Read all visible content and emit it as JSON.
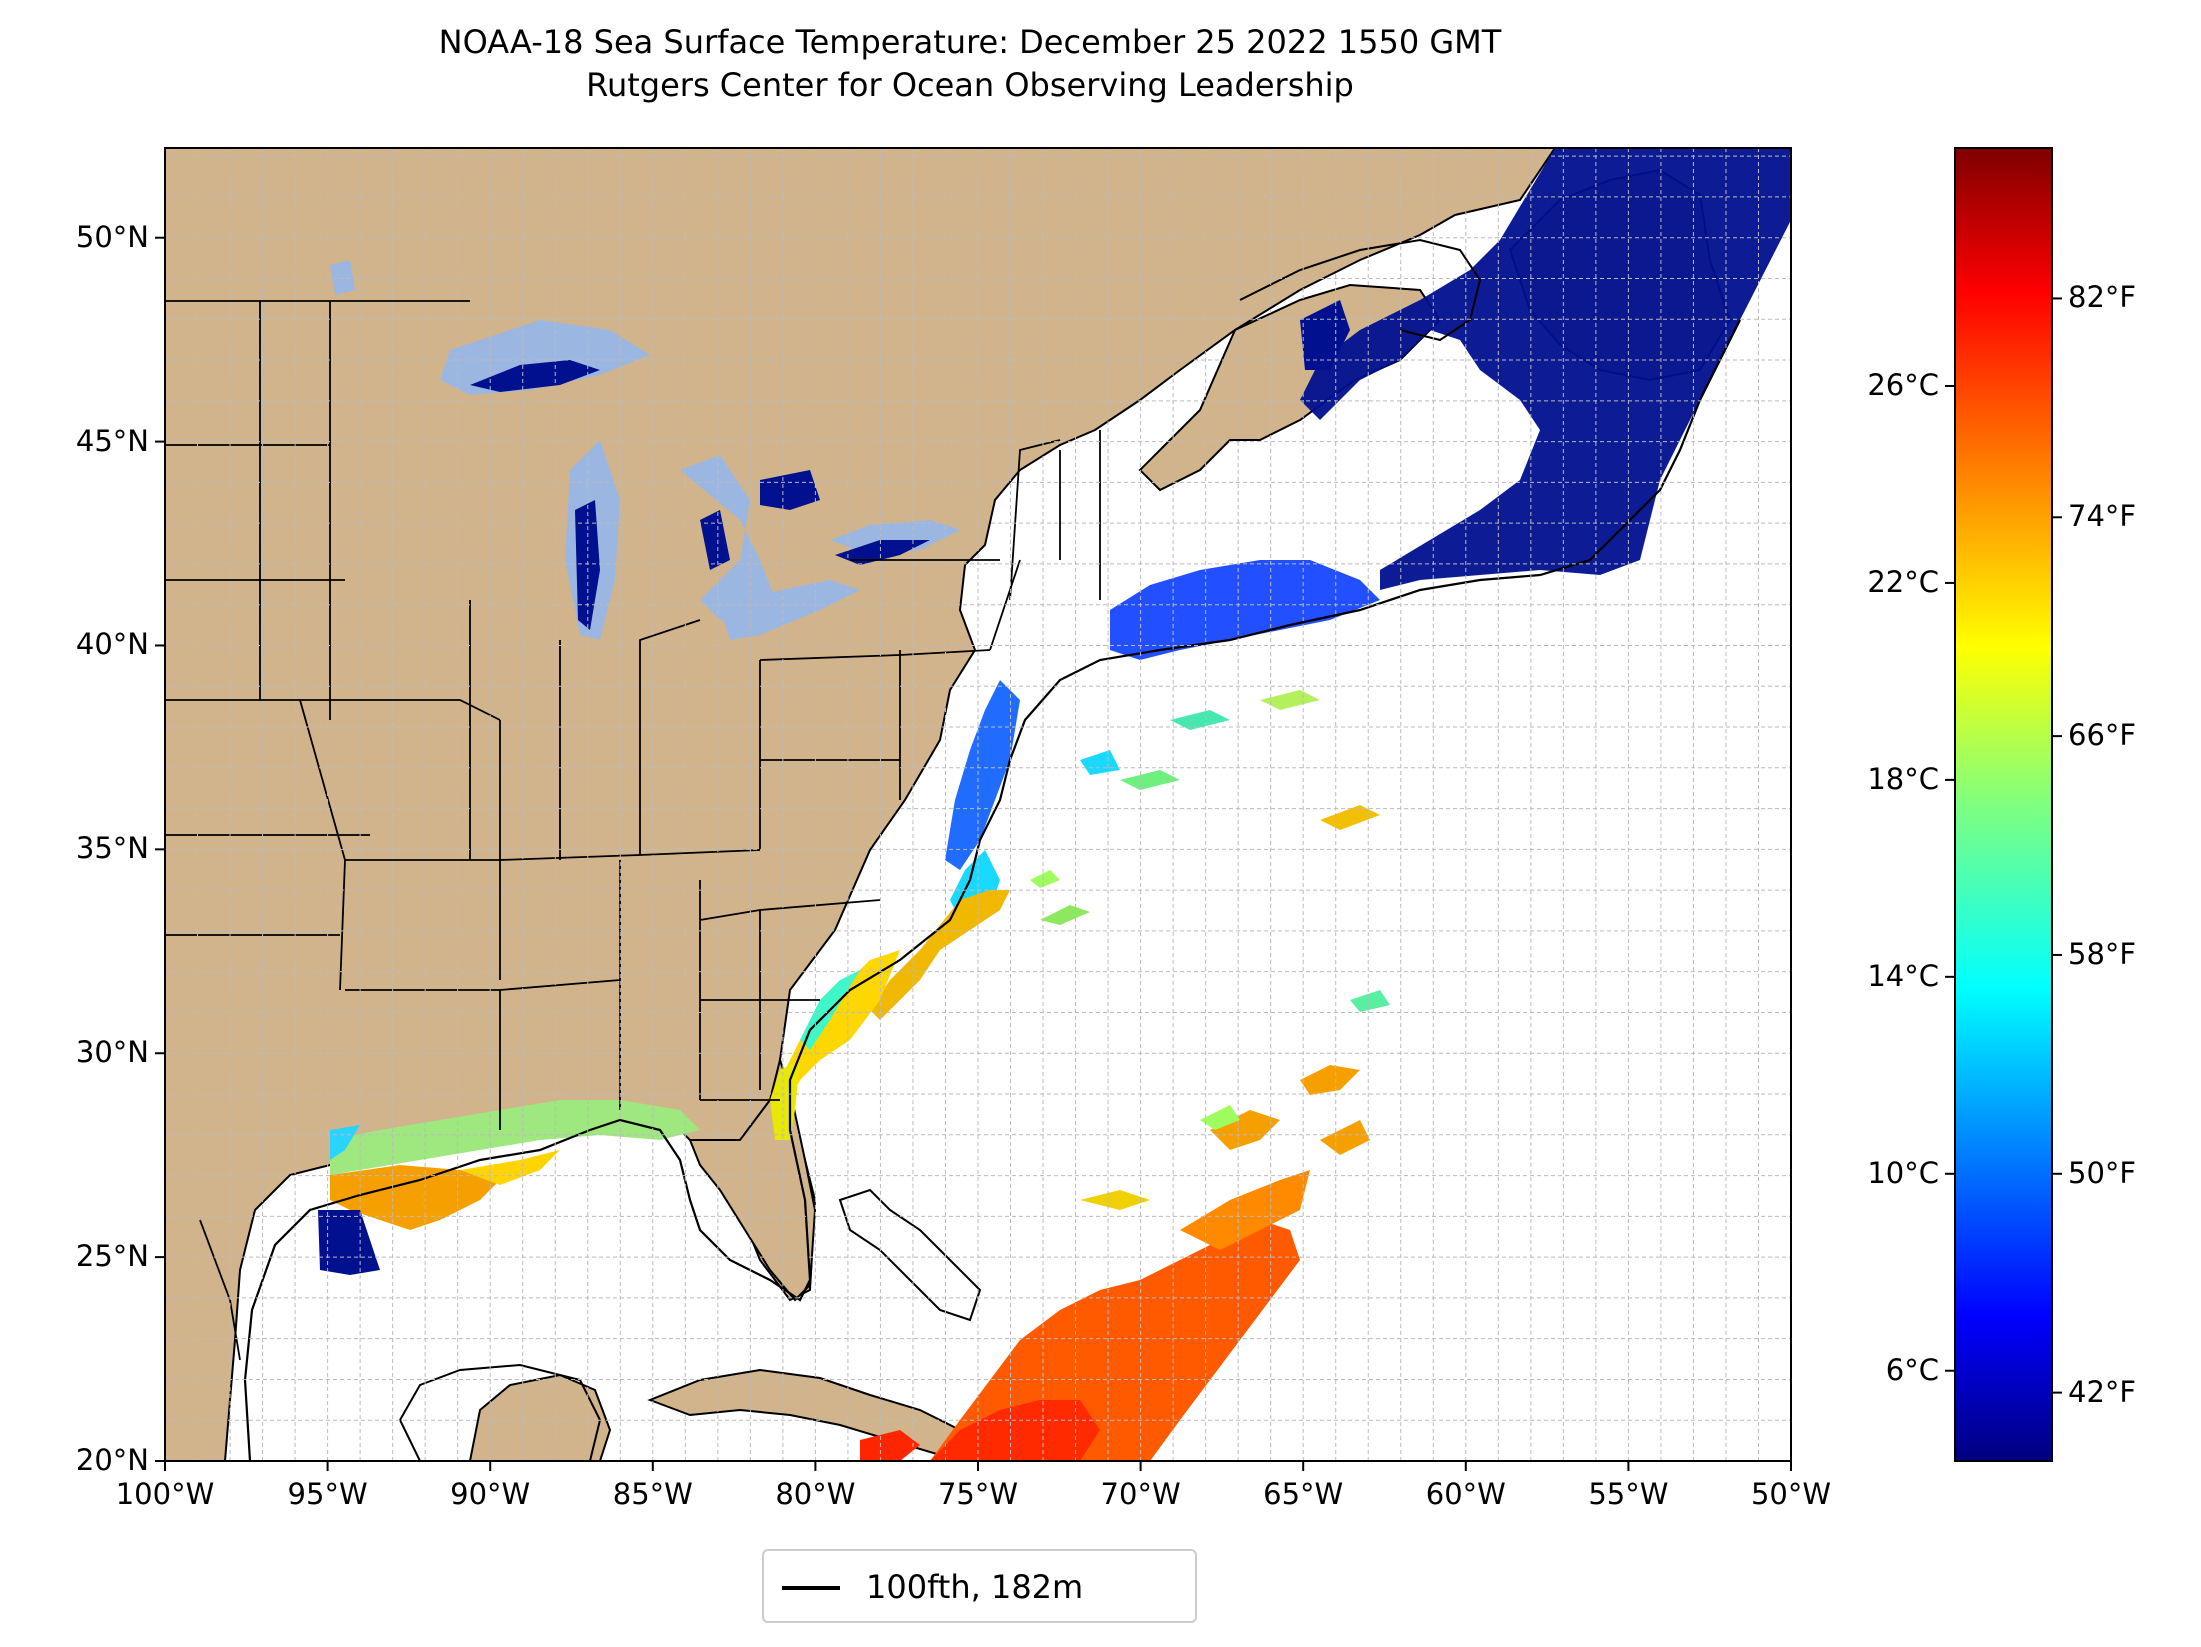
{
  "title": {
    "line1": "NOAA-18 Sea Surface Temperature: December 25 2022 1550 GMT",
    "line2": "Rutgers Center for Ocean Observing Leadership"
  },
  "map": {
    "lon_range": [
      -100,
      -50
    ],
    "lat_range": [
      20,
      52.2
    ],
    "lat_ticks": [
      {
        "value": 50,
        "label": "50°N"
      },
      {
        "value": 45,
        "label": "45°N"
      },
      {
        "value": 40,
        "label": "40°N"
      },
      {
        "value": 35,
        "label": "35°N"
      },
      {
        "value": 30,
        "label": "30°N"
      },
      {
        "value": 25,
        "label": "25°N"
      },
      {
        "value": 20,
        "label": "20°N"
      }
    ],
    "lon_ticks": [
      {
        "value": -100,
        "label": "100°W"
      },
      {
        "value": -95,
        "label": "95°W"
      },
      {
        "value": -90,
        "label": "90°W"
      },
      {
        "value": -85,
        "label": "85°W"
      },
      {
        "value": -80,
        "label": "80°W"
      },
      {
        "value": -75,
        "label": "75°W"
      },
      {
        "value": -70,
        "label": "70°W"
      },
      {
        "value": -65,
        "label": "65°W"
      },
      {
        "value": -60,
        "label": "60°W"
      },
      {
        "value": -55,
        "label": "55°W"
      },
      {
        "value": -50,
        "label": "50°W"
      }
    ],
    "grid": "dashed, every 1 degree",
    "colors": {
      "land": "#d2b48c",
      "lakes": "#9bb7e1",
      "ocean_no_data": "#ffffff",
      "borders": "#000000",
      "grid": "#bbbbbb"
    }
  },
  "colorbar": {
    "colormap": "jet",
    "range_f": [
      39.5,
      87.5
    ],
    "celsius_ticks": [
      {
        "value": 26,
        "label": "26°C"
      },
      {
        "value": 22,
        "label": "22°C"
      },
      {
        "value": 18,
        "label": "18°C"
      },
      {
        "value": 14,
        "label": "14°C"
      },
      {
        "value": 10,
        "label": "10°C"
      },
      {
        "value": 6,
        "label": "6°C"
      }
    ],
    "fahrenheit_ticks": [
      {
        "value": 82,
        "label": "82°F"
      },
      {
        "value": 74,
        "label": "74°F"
      },
      {
        "value": 66,
        "label": "66°F"
      },
      {
        "value": 58,
        "label": "58°F"
      },
      {
        "value": 50,
        "label": "50°F"
      },
      {
        "value": 42,
        "label": "42°F"
      }
    ]
  },
  "legend": {
    "label": "100fth, 182m",
    "line_color": "#000000"
  }
}
